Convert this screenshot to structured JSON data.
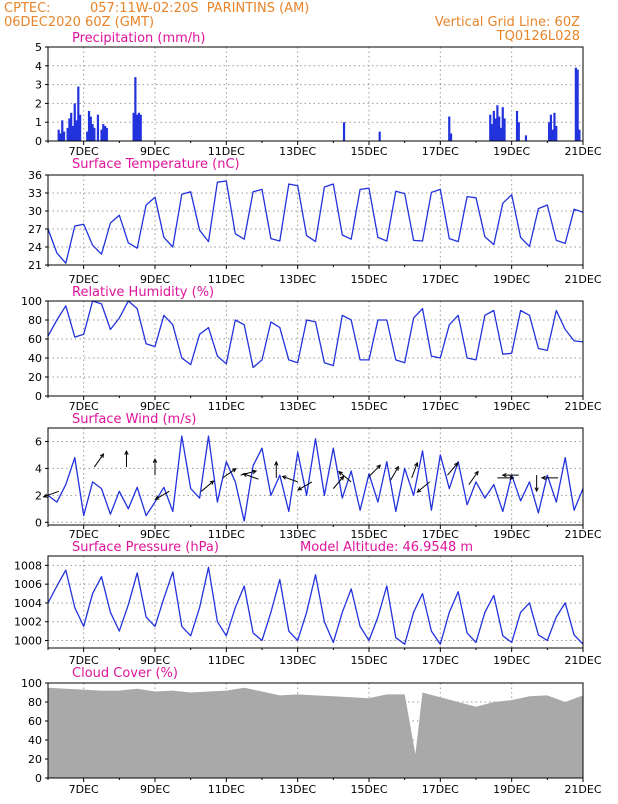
{
  "header": {
    "source": "CPTEC:",
    "location": "057:11W-02:20S  PARINTINS (AM)",
    "date": "06DEC2020 60Z (GMT)",
    "grid_note": "Vertical Grid Line: 60Z",
    "model_code": "TQ0126L028"
  },
  "colors": {
    "header": "#e8852a",
    "panel_title": "#e0149a",
    "series": "#2233dd",
    "cloud": "#a9a9a9",
    "arrow": "#000000",
    "grid": "#9a9a9a"
  },
  "chart_data": [
    {
      "type": "bar",
      "title": "Precipitation (mm/h)",
      "x_tick_labels": [
        "7DEC",
        "9DEC",
        "11DEC",
        "13DEC",
        "15DEC",
        "17DEC",
        "19DEC",
        "21DEC"
      ],
      "x_unit": "days after 06DEC2020 00Z",
      "xlim": [
        0,
        15
      ],
      "ylim": [
        0,
        5
      ],
      "y_ticks": [
        0,
        1,
        2,
        3,
        4,
        5
      ],
      "grid": true,
      "x": [
        0.3,
        0.35,
        0.4,
        0.45,
        0.55,
        0.6,
        0.65,
        0.7,
        0.75,
        0.8,
        0.85,
        0.9,
        1.1,
        1.15,
        1.2,
        1.25,
        1.3,
        1.4,
        1.5,
        1.55,
        1.6,
        1.65,
        2.4,
        2.45,
        2.5,
        2.55,
        2.6,
        8.3,
        9.3,
        11.25,
        11.3,
        12.4,
        12.45,
        12.5,
        12.55,
        12.6,
        12.65,
        12.7,
        12.75,
        12.8,
        13.15,
        13.2,
        13.4,
        14.05,
        14.1,
        14.15,
        14.2,
        14.25,
        14.8,
        14.85,
        14.9
      ],
      "values": [
        0.6,
        0.4,
        1.1,
        0.5,
        0.7,
        1.2,
        1.5,
        0.8,
        2.0,
        1.1,
        2.9,
        1.4,
        0.5,
        1.6,
        1.3,
        0.9,
        0.7,
        1.4,
        0.6,
        0.9,
        0.8,
        0.7,
        1.5,
        3.4,
        1.4,
        1.5,
        1.4,
        1.0,
        0.5,
        1.3,
        0.4,
        1.4,
        0.9,
        1.6,
        1.2,
        1.9,
        1.3,
        0.7,
        1.8,
        1.2,
        1.6,
        1.0,
        0.3,
        1.0,
        1.4,
        0.6,
        1.5,
        0.8,
        3.9,
        3.8,
        0.6
      ]
    },
    {
      "type": "line",
      "title": "Surface Temperature (nC)",
      "x_tick_labels": [
        "7DEC",
        "9DEC",
        "11DEC",
        "13DEC",
        "15DEC",
        "17DEC",
        "19DEC",
        "21DEC"
      ],
      "x_unit": "days after 06DEC2020 00Z",
      "xlim": [
        0,
        15
      ],
      "ylim": [
        21,
        36
      ],
      "y_ticks": [
        21,
        24,
        27,
        30,
        33,
        36
      ],
      "grid": true,
      "x": [
        0,
        0.25,
        0.5,
        0.75,
        1,
        1.25,
        1.5,
        1.75,
        2,
        2.25,
        2.5,
        2.75,
        3,
        3.25,
        3.5,
        3.75,
        4,
        4.25,
        4.5,
        4.75,
        5,
        5.25,
        5.5,
        5.75,
        6,
        6.25,
        6.5,
        6.75,
        7,
        7.25,
        7.5,
        7.75,
        8,
        8.25,
        8.5,
        8.75,
        9,
        9.25,
        9.5,
        9.75,
        10,
        10.25,
        10.5,
        10.75,
        11,
        11.25,
        11.5,
        11.75,
        12,
        12.25,
        12.5,
        12.75,
        13,
        13.25,
        13.5,
        13.75,
        14,
        14.25,
        14.5,
        14.75,
        15
      ],
      "values": [
        27,
        23,
        21.3,
        27.5,
        27.8,
        24.3,
        22.8,
        28,
        29.3,
        24.7,
        23.8,
        31,
        32.3,
        25.6,
        24,
        32.8,
        33.2,
        26.8,
        24.9,
        34.8,
        35,
        26.2,
        25.3,
        33.2,
        33.6,
        25.4,
        25,
        34.5,
        34.2,
        25.9,
        24.9,
        34,
        34.5,
        26,
        25.3,
        33.6,
        33.8,
        25.6,
        25,
        33.3,
        32.9,
        25.1,
        25,
        33.1,
        33.6,
        25.4,
        24.9,
        32.4,
        32.2,
        25.7,
        24.4,
        31.3,
        32.7,
        25.6,
        24.1,
        30.4,
        31,
        25.1,
        24.6,
        30.3,
        29.8
      ]
    },
    {
      "type": "line",
      "title": "Relative Humidity (%)",
      "x_tick_labels": [
        "7DEC",
        "9DEC",
        "11DEC",
        "13DEC",
        "15DEC",
        "17DEC",
        "19DEC",
        "21DEC"
      ],
      "x_unit": "days after 06DEC2020 00Z",
      "xlim": [
        0,
        15
      ],
      "ylim": [
        0,
        100
      ],
      "y_ticks": [
        0,
        20,
        40,
        60,
        80,
        100
      ],
      "grid": true,
      "x": [
        0,
        0.25,
        0.5,
        0.75,
        1,
        1.25,
        1.5,
        1.75,
        2,
        2.25,
        2.5,
        2.75,
        3,
        3.25,
        3.5,
        3.75,
        4,
        4.25,
        4.5,
        4.75,
        5,
        5.25,
        5.5,
        5.75,
        6,
        6.25,
        6.5,
        6.75,
        7,
        7.25,
        7.5,
        7.75,
        8,
        8.25,
        8.5,
        8.75,
        9,
        9.25,
        9.5,
        9.75,
        10,
        10.25,
        10.5,
        10.75,
        11,
        11.25,
        11.5,
        11.75,
        12,
        12.25,
        12.5,
        12.75,
        13,
        13.25,
        13.5,
        13.75,
        14,
        14.25,
        14.5,
        14.75,
        15
      ],
      "values": [
        63,
        80,
        95,
        62,
        65,
        100,
        97,
        70,
        82,
        100,
        92,
        55,
        52,
        85,
        75,
        40,
        33,
        65,
        72,
        42,
        34,
        80,
        75,
        30,
        38,
        78,
        72,
        38,
        35,
        80,
        78,
        35,
        32,
        85,
        80,
        38,
        38,
        80,
        80,
        38,
        35,
        82,
        92,
        42,
        40,
        75,
        85,
        40,
        38,
        85,
        90,
        44,
        45,
        90,
        85,
        50,
        48,
        90,
        70,
        58,
        57
      ]
    },
    {
      "type": "line",
      "title": "Surface Wind (m/s)",
      "x_tick_labels": [
        "7DEC",
        "9DEC",
        "11DEC",
        "13DEC",
        "15DEC",
        "17DEC",
        "19DEC",
        "21DEC"
      ],
      "x_unit": "days after 06DEC2020 00Z",
      "xlim": [
        0,
        15
      ],
      "ylim": [
        -0.2,
        7
      ],
      "y_ticks": [
        0,
        2,
        4,
        6
      ],
      "grid": true,
      "x": [
        0,
        0.25,
        0.5,
        0.75,
        1,
        1.25,
        1.5,
        1.75,
        2,
        2.25,
        2.5,
        2.75,
        3,
        3.25,
        3.5,
        3.75,
        4,
        4.25,
        4.5,
        4.75,
        5,
        5.25,
        5.5,
        5.75,
        6,
        6.25,
        6.5,
        6.75,
        7,
        7.25,
        7.5,
        7.75,
        8,
        8.25,
        8.5,
        8.75,
        9,
        9.25,
        9.5,
        9.75,
        10,
        10.25,
        10.5,
        10.75,
        11,
        11.25,
        11.5,
        11.75,
        12,
        12.25,
        12.5,
        12.75,
        13,
        13.25,
        13.5,
        13.75,
        14,
        14.25,
        14.5,
        14.75,
        15
      ],
      "values": [
        2.0,
        1.5,
        2.8,
        4.8,
        0.5,
        3.0,
        2.5,
        0.6,
        2.3,
        1.0,
        2.6,
        0.5,
        1.5,
        2.6,
        0.8,
        6.4,
        2.5,
        1.8,
        6.4,
        1.5,
        4.5,
        3.0,
        0.1,
        4.2,
        5.5,
        2.0,
        3.5,
        0.8,
        5.2,
        2.0,
        6.2,
        2.0,
        5.5,
        1.8,
        3.8,
        0.9,
        3.6,
        1.5,
        4.5,
        0.8,
        4.0,
        2.0,
        5.3,
        0.9,
        5.0,
        2.5,
        4.5,
        1.3,
        3.0,
        1.8,
        2.8,
        0.8,
        3.5,
        1.6,
        3.0,
        0.7,
        3.5,
        1.5,
        4.8,
        0.9,
        2.5
      ],
      "arrows": [
        {
          "x": 0.3,
          "y": 2.3,
          "dir_deg": 200
        },
        {
          "x": 1.3,
          "y": 4.1,
          "dir_deg": 55
        },
        {
          "x": 2.2,
          "y": 4.1,
          "dir_deg": 90
        },
        {
          "x": 3.0,
          "y": 3.5,
          "dir_deg": 90
        },
        {
          "x": 3.4,
          "y": 2.3,
          "dir_deg": 210
        },
        {
          "x": 4.3,
          "y": 2.3,
          "dir_deg": 40
        },
        {
          "x": 4.9,
          "y": 3.3,
          "dir_deg": 35
        },
        {
          "x": 5.4,
          "y": 3.5,
          "dir_deg": 15
        },
        {
          "x": 5.9,
          "y": 3.2,
          "dir_deg": 160
        },
        {
          "x": 6.4,
          "y": 3.3,
          "dir_deg": 90
        },
        {
          "x": 7.0,
          "y": 3.0,
          "dir_deg": 160
        },
        {
          "x": 7.4,
          "y": 3.0,
          "dir_deg": 210
        },
        {
          "x": 8.0,
          "y": 2.5,
          "dir_deg": 50
        },
        {
          "x": 8.5,
          "y": 3.0,
          "dir_deg": 140
        },
        {
          "x": 9.0,
          "y": 3.4,
          "dir_deg": 45
        },
        {
          "x": 9.6,
          "y": 3.1,
          "dir_deg": 60
        },
        {
          "x": 10.2,
          "y": 3.3,
          "dir_deg": 70
        },
        {
          "x": 10.7,
          "y": 3.0,
          "dir_deg": 220
        },
        {
          "x": 11.2,
          "y": 3.5,
          "dir_deg": 50
        },
        {
          "x": 11.8,
          "y": 2.8,
          "dir_deg": 55
        },
        {
          "x": 12.6,
          "y": 3.3,
          "dir_deg": 0
        },
        {
          "x": 13.2,
          "y": 3.5,
          "dir_deg": 180
        },
        {
          "x": 13.7,
          "y": 3.5,
          "dir_deg": 270
        },
        {
          "x": 14.3,
          "y": 3.3,
          "dir_deg": 180
        }
      ]
    },
    {
      "type": "line",
      "title": "Surface Pressure (hPa)",
      "annotation": "Model Altitude: 46.9548 m",
      "x_tick_labels": [
        "7DEC",
        "9DEC",
        "11DEC",
        "13DEC",
        "15DEC",
        "17DEC",
        "19DEC",
        "21DEC"
      ],
      "x_unit": "days after 06DEC2020 00Z",
      "xlim": [
        0,
        15
      ],
      "ylim": [
        999.2,
        1009
      ],
      "y_ticks": [
        1000,
        1002,
        1004,
        1006,
        1008
      ],
      "grid": true,
      "x": [
        0,
        0.25,
        0.5,
        0.75,
        1,
        1.25,
        1.5,
        1.75,
        2,
        2.25,
        2.5,
        2.75,
        3,
        3.25,
        3.5,
        3.75,
        4,
        4.25,
        4.5,
        4.75,
        5,
        5.25,
        5.5,
        5.75,
        6,
        6.25,
        6.5,
        6.75,
        7,
        7.25,
        7.5,
        7.75,
        8,
        8.25,
        8.5,
        8.75,
        9,
        9.25,
        9.5,
        9.75,
        10,
        10.25,
        10.5,
        10.75,
        11,
        11.25,
        11.5,
        11.75,
        12,
        12.25,
        12.5,
        12.75,
        13,
        13.25,
        13.5,
        13.75,
        14,
        14.25,
        14.5,
        14.75,
        15
      ],
      "values": [
        1004,
        1005.8,
        1007.5,
        1003.5,
        1001.5,
        1005,
        1006.8,
        1003,
        1001,
        1003.8,
        1007.2,
        1002.5,
        1001.5,
        1004.5,
        1007.3,
        1001.5,
        1000.5,
        1003.5,
        1007.8,
        1002,
        1000.5,
        1003.5,
        1005.8,
        1000.8,
        1000,
        1003,
        1006.5,
        1001,
        1000,
        1003,
        1007,
        1002,
        999.8,
        1003,
        1005.5,
        1001.5,
        1000,
        1002.5,
        1005.8,
        1000.3,
        999.6,
        1003,
        1005,
        1001,
        999.6,
        1003,
        1005.2,
        1000.8,
        999.8,
        1003,
        1004.8,
        1000.5,
        999.8,
        1003,
        1004,
        1000.6,
        1000,
        1002.5,
        1004,
        1000.6,
        999.6
      ]
    },
    {
      "type": "area",
      "title": "Cloud Cover (%)",
      "x_tick_labels": [
        "7DEC",
        "9DEC",
        "11DEC",
        "13DEC",
        "15DEC",
        "17DEC",
        "19DEC",
        "21DEC"
      ],
      "x_unit": "days after 06DEC2020 00Z",
      "xlim": [
        0,
        15
      ],
      "ylim": [
        0,
        100
      ],
      "y_ticks": [
        0,
        20,
        40,
        60,
        80,
        100
      ],
      "grid": true,
      "x": [
        0,
        0.5,
        1,
        1.5,
        2,
        2.5,
        3,
        3.5,
        4,
        4.5,
        5,
        5.5,
        6,
        6.5,
        7,
        7.5,
        8,
        8.5,
        9,
        9.5,
        10,
        10.3,
        10.5,
        11,
        11.5,
        12,
        12.5,
        13,
        13.5,
        14,
        14.5,
        15
      ],
      "values": [
        95,
        94,
        93,
        92,
        92,
        94,
        91,
        92,
        90,
        91,
        92,
        95,
        91,
        87,
        88,
        87,
        86,
        85,
        84,
        88,
        88,
        25,
        90,
        85,
        80,
        75,
        80,
        82,
        86,
        87,
        80,
        87
      ]
    }
  ]
}
